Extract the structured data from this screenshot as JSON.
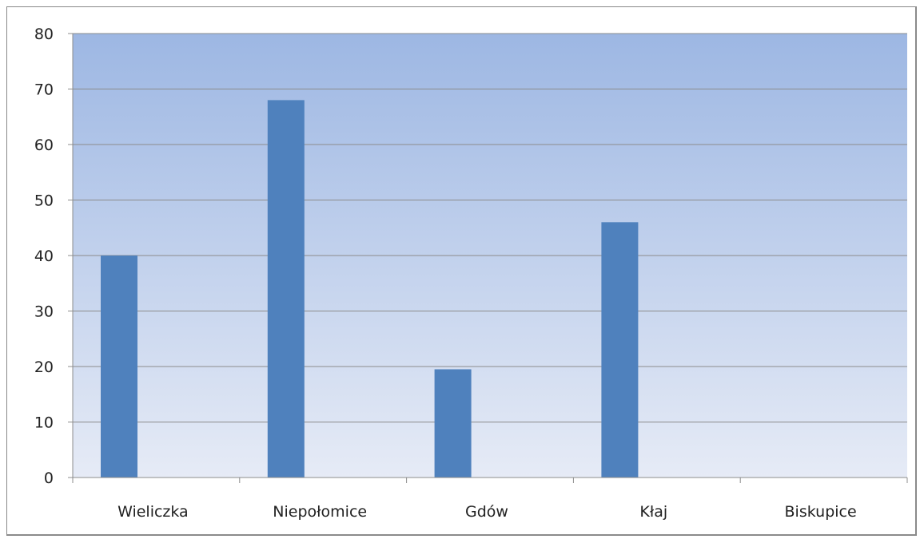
{
  "chart_data": {
    "type": "bar",
    "title": "",
    "xlabel": "",
    "ylabel": "",
    "categories": [
      "Wieliczka",
      "Niepołomice",
      "Gdów",
      "Kłaj",
      "Biskupice"
    ],
    "values": [
      40,
      68,
      19.5,
      46,
      0
    ],
    "ylim": [
      0,
      80
    ],
    "yticks": [
      0,
      10,
      20,
      30,
      40,
      50,
      60,
      70,
      80
    ],
    "grid": true,
    "legend": "none",
    "colors": {
      "bar": "#4f81bd",
      "plot_top": "#9db7e3",
      "plot_bottom": "#e6ebf6",
      "gridline": "#8c8c8c"
    }
  }
}
